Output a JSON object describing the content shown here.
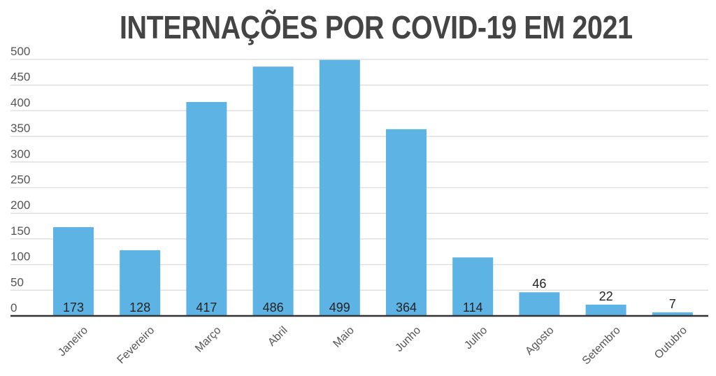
{
  "title": "INTERNAÇÕES POR COVID-19 EM 2021",
  "colors": {
    "bar": "#5db4e4",
    "title": "#444444",
    "axis_text": "#555555",
    "grid": "#e0e0e0",
    "baseline": "#333333",
    "label": "#222222"
  },
  "chart_data": {
    "type": "bar",
    "title": "INTERNAÇÕES POR COVID-19 EM 2021",
    "xlabel": "",
    "ylabel": "",
    "ylim": [
      0,
      500
    ],
    "yticks": [
      0,
      50,
      100,
      150,
      200,
      250,
      300,
      350,
      400,
      450,
      500
    ],
    "grid": true,
    "legend": null,
    "categories": [
      "Janeiro",
      "Fevereiro",
      "Março",
      "Abril",
      "Maio",
      "Junho",
      "Julho",
      "Agosto",
      "Setembro",
      "Outubro"
    ],
    "values": [
      173,
      128,
      417,
      486,
      499,
      364,
      114,
      46,
      22,
      7
    ],
    "data_labels": [
      "173",
      "128",
      "417",
      "486",
      "499",
      "364",
      "114",
      "46",
      "22",
      "7"
    ]
  }
}
